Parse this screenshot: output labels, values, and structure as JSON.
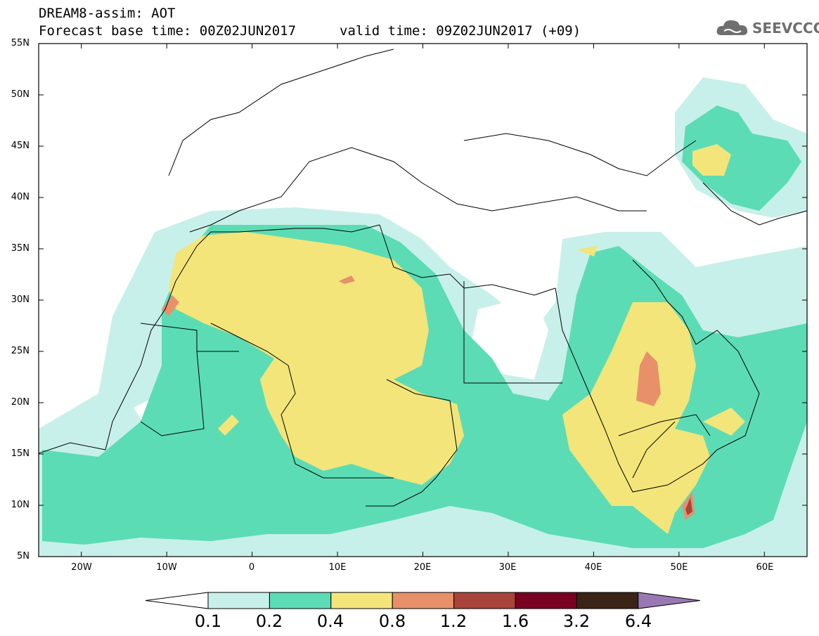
{
  "header": {
    "title_line1": "DREAM8-assim: AOT",
    "title_line2": "Forecast base time: 00Z02JUN2017",
    "valid_time": "valid time: 09Z02JUN2017 (+09)",
    "logo_text": "SEEVCCC"
  },
  "map": {
    "variable": "AOT",
    "lat_labels": [
      "55N",
      "50N",
      "45N",
      "40N",
      "35N",
      "30N",
      "25N",
      "20N",
      "15N",
      "10N",
      "5N"
    ],
    "lon_labels": [
      "20W",
      "10W",
      "0",
      "10E",
      "20E",
      "30E",
      "40E",
      "50E",
      "60E"
    ],
    "lon_range": [
      -25,
      65
    ],
    "lat_range": [
      5,
      55
    ]
  },
  "colorbar": {
    "levels": [
      "0.1",
      "0.2",
      "0.4",
      "0.8",
      "1.2",
      "1.6",
      "3.2",
      "6.4"
    ],
    "colors": [
      "#c8f0ea",
      "#5cdcb4",
      "#f3e57a",
      "#e8906a",
      "#a8443a",
      "#7a0022",
      "#3a2416",
      "#9a78b4"
    ],
    "under_color": "#ffffff"
  }
}
